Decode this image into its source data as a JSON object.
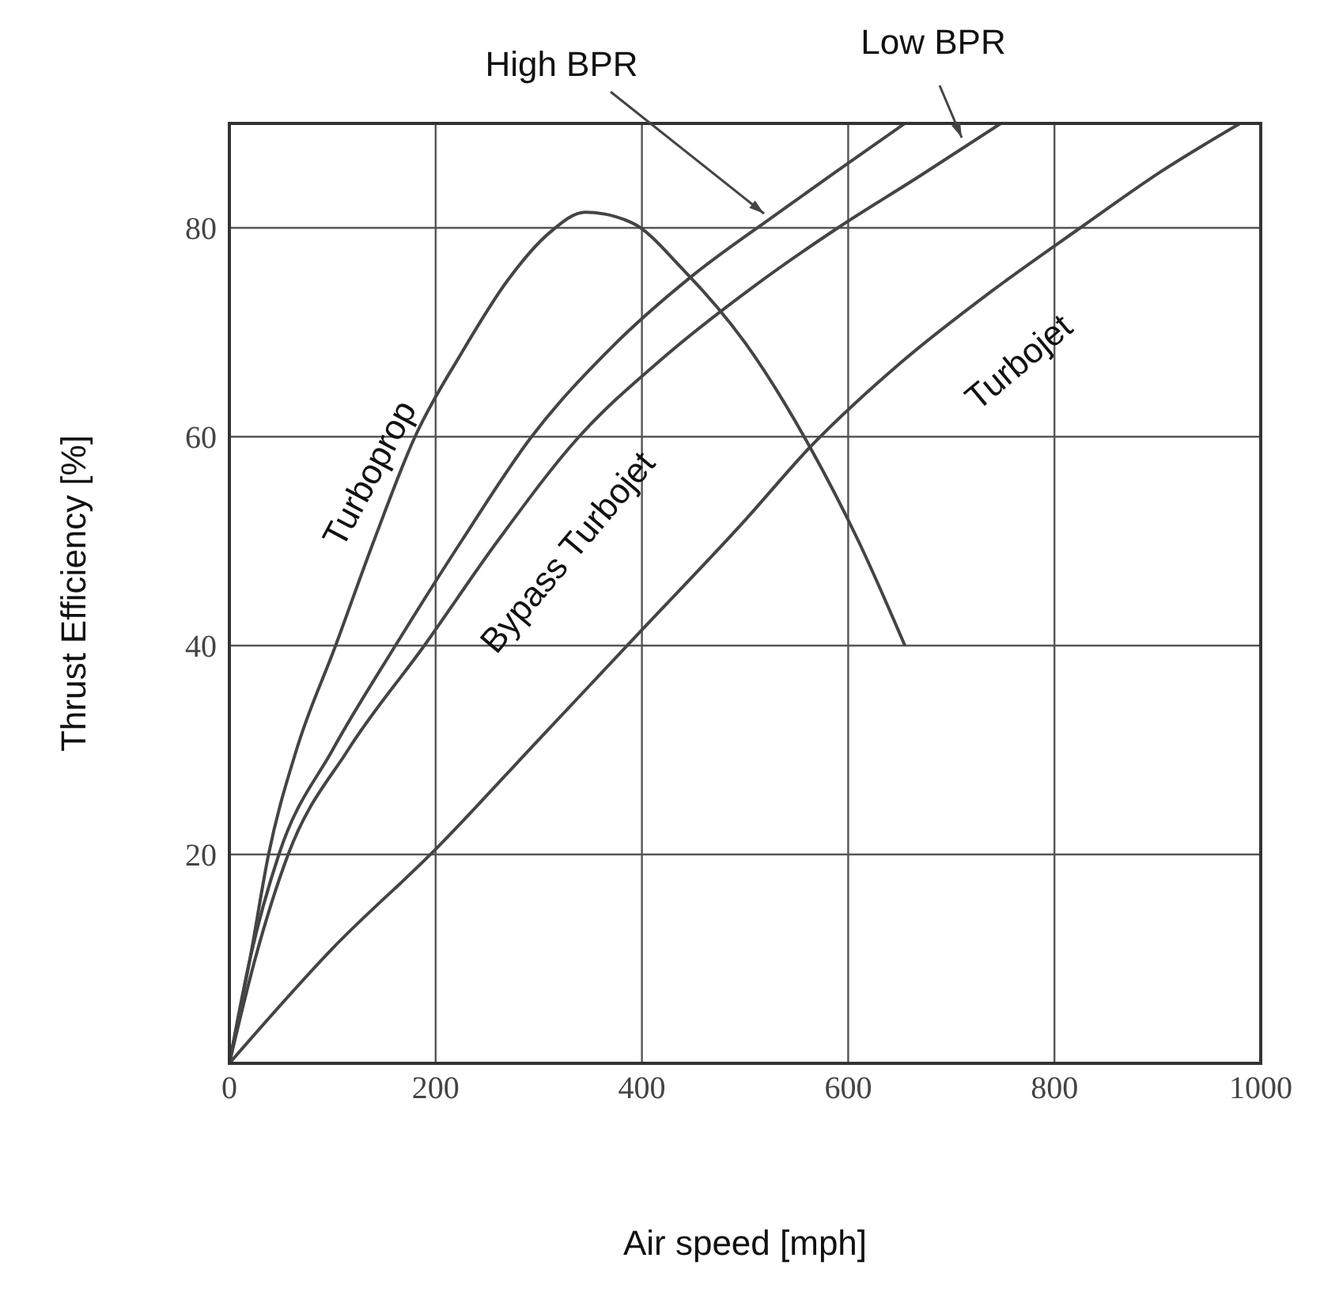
{
  "chart_data": {
    "type": "line",
    "xlabel": "Air speed [mph]",
    "ylabel": "Thrust Efficiency [%]",
    "xlim": [
      0,
      1000
    ],
    "xticks": [
      0,
      200,
      400,
      600,
      800,
      1000
    ],
    "ylim": [
      0,
      90
    ],
    "yticks": [
      20,
      40,
      60,
      80
    ],
    "grid": true,
    "marker": "none",
    "line_style": "solid",
    "series": [
      {
        "name": "Turboprop",
        "color": "#444444",
        "x": [
          0,
          20,
          38,
          65,
          103,
          140,
          180,
          225,
          270,
          310,
          345,
          390,
          440,
          500,
          563,
          610,
          655
        ],
        "values": [
          0,
          10,
          20,
          30,
          40,
          50,
          60,
          68,
          75,
          79.5,
          81.5,
          80.5,
          76,
          69,
          59,
          50,
          40
        ]
      },
      {
        "name": "High BPR",
        "color": "#444444",
        "x": [
          0,
          20,
          48,
          100,
          161,
          225,
          293,
          370,
          450,
          526,
          590,
          655
        ],
        "values": [
          0,
          10,
          20,
          30,
          40,
          50,
          60,
          68.5,
          75.5,
          81,
          85.5,
          90
        ]
      },
      {
        "name": "Low BPR",
        "color": "#444444",
        "x": [
          0,
          25,
          57,
          115,
          189,
          260,
          339,
          420,
          510,
          590,
          670,
          748
        ],
        "values": [
          0,
          10,
          20,
          30,
          40,
          50,
          60,
          67.5,
          74.5,
          80,
          85,
          90
        ]
      },
      {
        "name": "Turbojet",
        "color": "#444444",
        "x": [
          0,
          100,
          200,
          300,
          400,
          500,
          563,
          650,
          740,
          825,
          905,
          980
        ],
        "values": [
          0,
          11,
          20.5,
          31,
          41.5,
          52,
          59,
          67,
          74,
          80,
          85.5,
          90
        ]
      }
    ],
    "annotations": [
      "Bypass Turbojet"
    ]
  }
}
